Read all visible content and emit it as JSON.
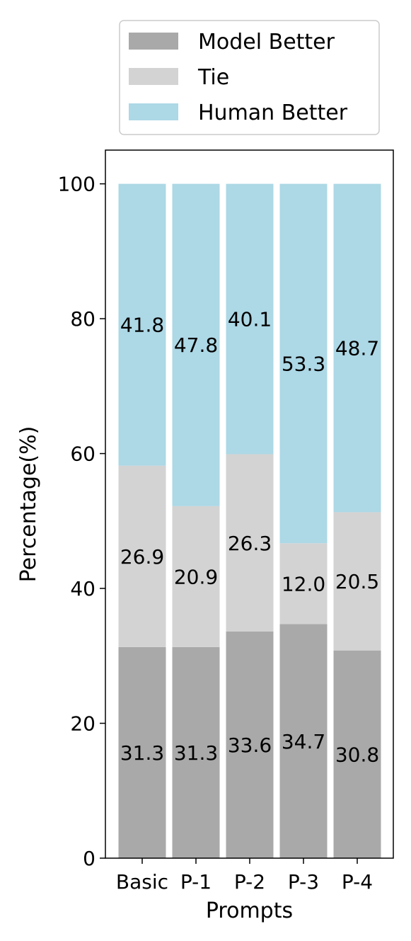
{
  "chart_data": {
    "type": "bar",
    "stacked": true,
    "categories": [
      "Basic",
      "P-1",
      "P-2",
      "P-3",
      "P-4"
    ],
    "series": [
      {
        "name": "Model Better",
        "values": [
          31.3,
          31.3,
          33.6,
          34.7,
          30.8
        ],
        "color": "#a9a9a9"
      },
      {
        "name": "Tie",
        "values": [
          26.9,
          20.9,
          26.3,
          12.0,
          20.5
        ],
        "color": "#d3d3d3"
      },
      {
        "name": "Human Better",
        "values": [
          41.8,
          47.8,
          40.1,
          53.3,
          48.7
        ],
        "color": "#add8e6"
      }
    ],
    "title": "",
    "xlabel": "Prompts",
    "ylabel": "Percentage(%)",
    "ylim": [
      0,
      105
    ],
    "yticks": [
      0,
      20,
      40,
      60,
      80,
      100
    ],
    "grid": false,
    "legend_position": "top"
  }
}
